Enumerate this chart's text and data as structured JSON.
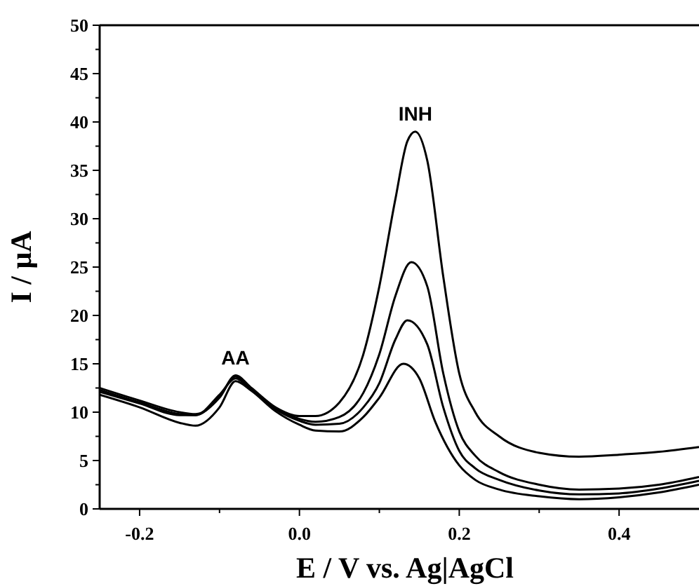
{
  "chart_data": {
    "type": "line",
    "xlabel": "E / V vs. Ag|AgCl",
    "ylabel": "I / μA",
    "xlim": [
      -0.25,
      0.5
    ],
    "xticks": [
      -0.2,
      {
        "value": -0.1,
        "label": null
      },
      {
        "value": 0.0,
        "label": "0.0"
      },
      {
        "value": 0.1,
        "label": null
      },
      0.2,
      {
        "value": 0.3,
        "label": null
      },
      0.4
    ],
    "ylim": [
      0,
      50
    ],
    "yticks": [
      0,
      {
        "value": 2.5,
        "label": null
      },
      5,
      {
        "value": 7.5,
        "label": null
      },
      10,
      {
        "value": 12.5,
        "label": null
      },
      15,
      {
        "value": 17.5,
        "label": null
      },
      20,
      {
        "value": 22.5,
        "label": null
      },
      25,
      {
        "value": 27.5,
        "label": null
      },
      30,
      {
        "value": 32.5,
        "label": null
      },
      35,
      {
        "value": 37.5,
        "label": null
      },
      40,
      {
        "value": 42.5,
        "label": null
      },
      45,
      {
        "value": 47.5,
        "label": null
      },
      50
    ],
    "grid": false,
    "marker": "none",
    "line_style": "solid",
    "annotations": [
      {
        "text": "AA",
        "x": -0.08,
        "y": 13.8
      },
      {
        "text": "INH",
        "x": 0.145,
        "y": 39
      }
    ],
    "series": [
      {
        "color": "#000000",
        "x": [
          -0.25,
          -0.2,
          -0.15,
          -0.13,
          -0.1,
          -0.08,
          -0.06,
          -0.03,
          0.0,
          0.02,
          0.05,
          0.08,
          0.1,
          0.12,
          0.135,
          0.145,
          0.16,
          0.18,
          0.2,
          0.22,
          0.25,
          0.3,
          0.35,
          0.4,
          0.45,
          0.5
        ],
        "values": [
          12.5,
          11.2,
          10.0,
          9.8,
          11.5,
          13.8,
          12.5,
          10.5,
          9.6,
          9.6,
          11,
          16,
          23,
          32,
          38,
          39,
          36,
          24,
          14,
          10,
          7.5,
          5.8,
          5.4,
          5.6,
          5.9,
          6.4
        ]
      },
      {
        "color": "#000000",
        "x": [
          -0.25,
          -0.2,
          -0.15,
          -0.13,
          -0.1,
          -0.08,
          -0.06,
          -0.03,
          0.0,
          0.02,
          0.05,
          0.08,
          0.1,
          0.12,
          0.14,
          0.16,
          0.18,
          0.2,
          0.22,
          0.25,
          0.3,
          0.35,
          0.4,
          0.45,
          0.5
        ],
        "values": [
          12.3,
          11.0,
          9.8,
          9.7,
          11.6,
          13.7,
          12.4,
          10.4,
          9.3,
          9.0,
          9.5,
          12,
          16,
          22,
          25.5,
          23,
          14,
          8,
          5.5,
          3.8,
          2.5,
          2.0,
          2.1,
          2.5,
          3.3
        ]
      },
      {
        "color": "#000000",
        "x": [
          -0.25,
          -0.2,
          -0.15,
          -0.13,
          -0.1,
          -0.08,
          -0.06,
          -0.03,
          0.0,
          0.02,
          0.05,
          0.08,
          0.1,
          0.12,
          0.135,
          0.16,
          0.18,
          0.2,
          0.22,
          0.25,
          0.3,
          0.35,
          0.4,
          0.45,
          0.5
        ],
        "values": [
          12.1,
          10.9,
          9.7,
          9.7,
          11.8,
          13.5,
          12.3,
          10.3,
          9.1,
          8.7,
          8.8,
          10.5,
          13,
          17.5,
          19.5,
          17,
          10.5,
          6,
          4.2,
          3,
          1.9,
          1.5,
          1.6,
          2.1,
          2.9
        ]
      },
      {
        "color": "#000000",
        "x": [
          -0.25,
          -0.2,
          -0.15,
          -0.13,
          -0.1,
          -0.08,
          -0.06,
          -0.03,
          0.0,
          0.02,
          0.05,
          0.08,
          0.1,
          0.13,
          0.15,
          0.17,
          0.2,
          0.22,
          0.25,
          0.3,
          0.35,
          0.4,
          0.45,
          0.5
        ],
        "values": [
          11.8,
          10.5,
          8.9,
          8.6,
          10.5,
          13.2,
          12.2,
          10.1,
          8.7,
          8.1,
          8.0,
          9.5,
          11.5,
          15,
          13.5,
          9,
          4.5,
          3,
          2,
          1.3,
          1.0,
          1.2,
          1.7,
          2.5
        ]
      }
    ]
  }
}
